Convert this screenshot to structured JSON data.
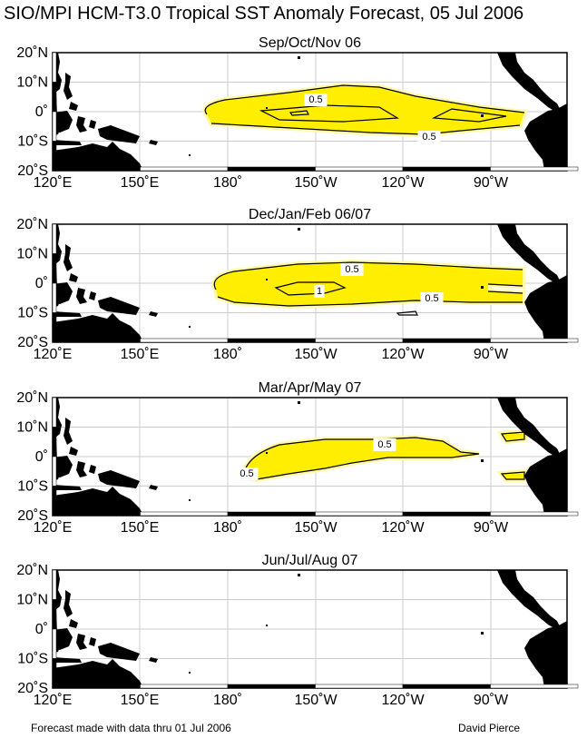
{
  "title": "SIO/MPI HCM-T3.0 Tropical SST Anomaly Forecast, 05 Jul 2006",
  "footer": {
    "left": "Forecast made with data thru 01 Jul 2006",
    "right": "David Pierce"
  },
  "axes": {
    "lat_ticks": [
      "20˚N",
      "10˚N",
      "0˚",
      "10˚S",
      "20˚S"
    ],
    "lon_ticks": [
      "120˚E",
      "150˚E",
      "180˚",
      "150˚W",
      "120˚W",
      "90˚W"
    ]
  },
  "colors": {
    "land": "#000000",
    "anomaly_fill": "#ffee00",
    "anomaly_fill_light": "#fff9a8",
    "contour": "#000000",
    "grid": "#cccccc"
  },
  "panels": [
    {
      "season": "Sep/Oct/Nov 06",
      "contour_labels": [
        "0.5",
        "0.5"
      ]
    },
    {
      "season": "Dec/Jan/Feb 06/07",
      "contour_labels": [
        "0.5",
        "1",
        "0.5"
      ]
    },
    {
      "season": "Mar/Apr/May 07",
      "contour_labels": [
        "0.5",
        "0.5"
      ]
    },
    {
      "season": "Jun/Jul/Aug 07",
      "contour_labels": []
    }
  ]
}
